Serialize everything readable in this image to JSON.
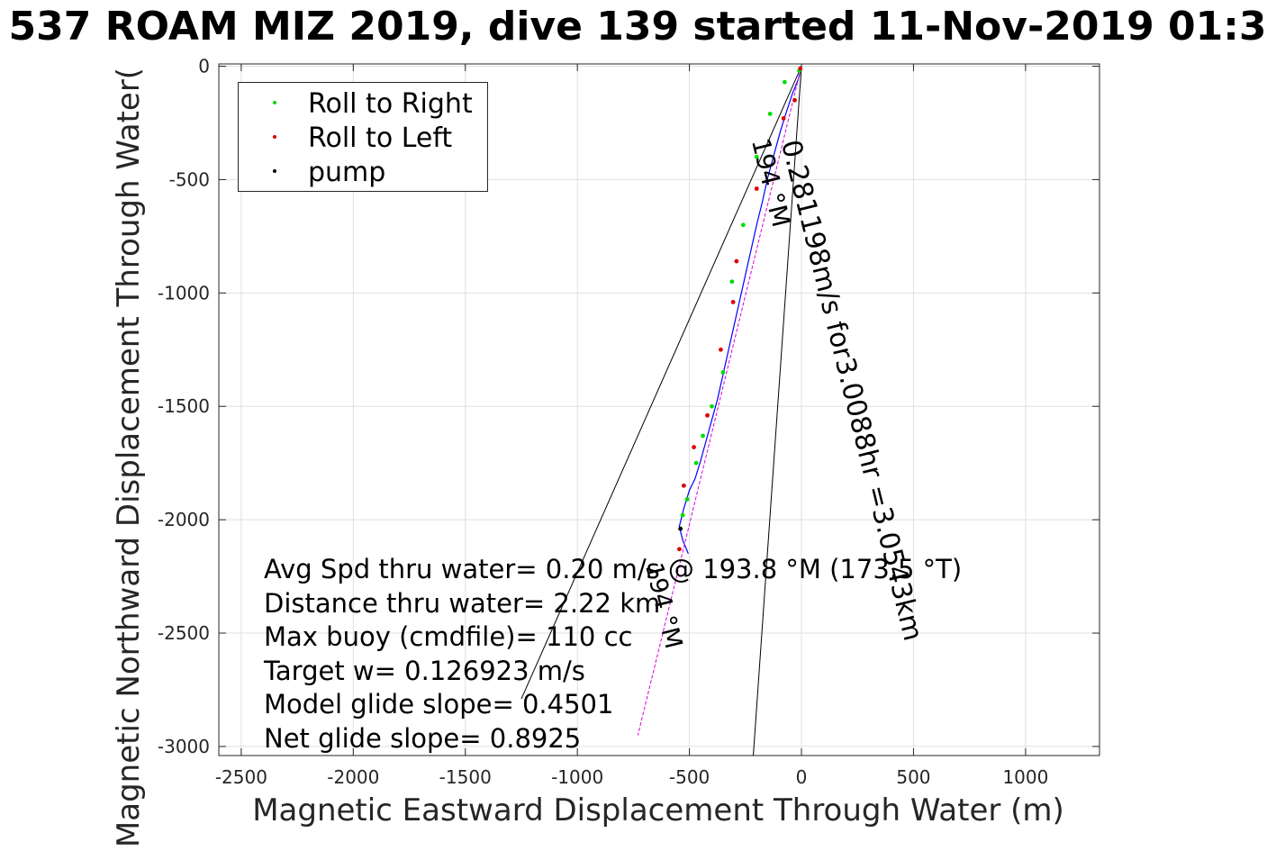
{
  "window": {
    "title": "537 ROAM MIZ 2019, dive 139 started 11-Nov-2019 01:3"
  },
  "chart_data": {
    "type": "line",
    "xlabel": "Magnetic Eastward Displacement Through Water (m)",
    "ylabel": "Magnetic Northward Displacement Through Water(",
    "xlim": [
      -2600,
      1330
    ],
    "ylim": [
      -3040,
      10
    ],
    "xticks": [
      -2500,
      -2000,
      -1500,
      -1000,
      -500,
      0,
      500,
      1000
    ],
    "yticks": [
      0,
      -500,
      -1000,
      -1500,
      -2000,
      -2500,
      -3000
    ],
    "grid": true,
    "legend_position": "top-left",
    "legend": [
      {
        "label": "Roll to Right",
        "color": "#00dd00"
      },
      {
        "label": "Roll to Left",
        "color": "#dd0000"
      },
      {
        "label": "pump",
        "color": "#000000"
      }
    ],
    "series": [
      {
        "name": "track",
        "color": "#0000ff",
        "x": [
          0,
          -15,
          -40,
          -70,
          -95,
          -120,
          -150,
          -175,
          -200,
          -225,
          -250,
          -275,
          -300,
          -325,
          -350,
          -375,
          -400,
          -425,
          -450,
          -475,
          -500,
          -525,
          -545,
          -530,
          -505
        ],
        "y": [
          0,
          -60,
          -120,
          -210,
          -290,
          -380,
          -490,
          -600,
          -700,
          -810,
          -920,
          -1030,
          -1140,
          -1250,
          -1360,
          -1470,
          -1560,
          -1650,
          -1740,
          -1820,
          -1870,
          -1950,
          -2030,
          -2090,
          -2150
        ]
      },
      {
        "name": "mean",
        "color": "#dd00dd",
        "x": [
          0,
          -730
        ],
        "y": [
          0,
          -2950
        ]
      },
      {
        "name": "heading-1",
        "color": "#000000",
        "x": [
          0,
          -1250
        ],
        "y": [
          0,
          -2790
        ]
      },
      {
        "name": "heading-2",
        "color": "#000000",
        "x": [
          0,
          -215
        ],
        "y": [
          0,
          -3040
        ]
      }
    ],
    "roll_right_points": {
      "x": [
        -10,
        -75,
        -140,
        -200,
        -260,
        -310,
        -350,
        -400,
        -440,
        -470,
        -510,
        -530
      ],
      "y": [
        -20,
        -70,
        -210,
        -400,
        -700,
        -950,
        -1350,
        -1500,
        -1630,
        -1750,
        -1910,
        -1980
      ]
    },
    "roll_left_points": {
      "x": [
        -5,
        -30,
        -80,
        -200,
        -290,
        -305,
        -360,
        -420,
        -480,
        -525,
        -545
      ],
      "y": [
        -10,
        -150,
        -230,
        -540,
        -860,
        -1040,
        -1250,
        -1540,
        -1680,
        -1850,
        -2130
      ]
    },
    "pump_points": {
      "x": [
        -540
      ],
      "y": [
        -2040
      ]
    },
    "annotations": [
      "Avg Spd thru water=  0.20 m/s @ 193.8 °M (173.5 °T)",
      "Distance thru water=  2.22 km",
      "Max buoy (cmdfile)= 110 cc",
      "Target w= 0.126923 m/s",
      "Model glide slope= 0.4501",
      "Net glide slope= 0.8925"
    ],
    "line_labels": {
      "main": "0.281198m/s for3.0088hr =3.0543km",
      "heading_upper": "194 °M",
      "heading_lower": "194 °M"
    }
  }
}
